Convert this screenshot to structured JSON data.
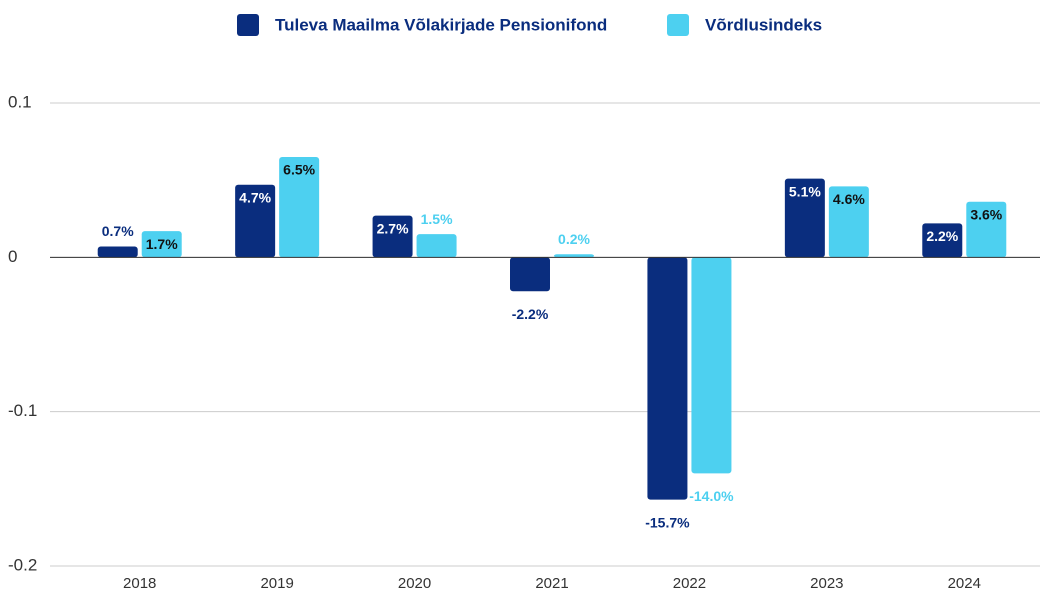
{
  "chart_data": {
    "type": "bar",
    "categories": [
      "2018",
      "2019",
      "2020",
      "2021",
      "2022",
      "2023",
      "2024"
    ],
    "series": [
      {
        "name": "Tuleva Maailma Võlakirjade Pensionifond",
        "color": "#0a2d7e",
        "values": [
          0.007,
          0.047,
          0.027,
          -0.022,
          -0.157,
          0.051,
          0.022
        ],
        "value_labels": [
          "0.7%",
          "4.7%",
          "2.7%",
          "-2.2%",
          "-15.7%",
          "5.1%",
          "2.2%"
        ]
      },
      {
        "name": "Võrdlusindeks",
        "color": "#4dd0f0",
        "values": [
          0.017,
          0.065,
          0.015,
          0.002,
          -0.14,
          0.046,
          0.036
        ],
        "value_labels": [
          "1.7%",
          "6.5%",
          "1.5%",
          "0.2%",
          "-14.0%",
          "4.6%",
          "3.6%"
        ]
      }
    ],
    "ylim": [
      -0.2,
      0.1
    ],
    "yticks": [
      -0.2,
      -0.1,
      0,
      0.1
    ],
    "grid": true,
    "legend": "top"
  }
}
